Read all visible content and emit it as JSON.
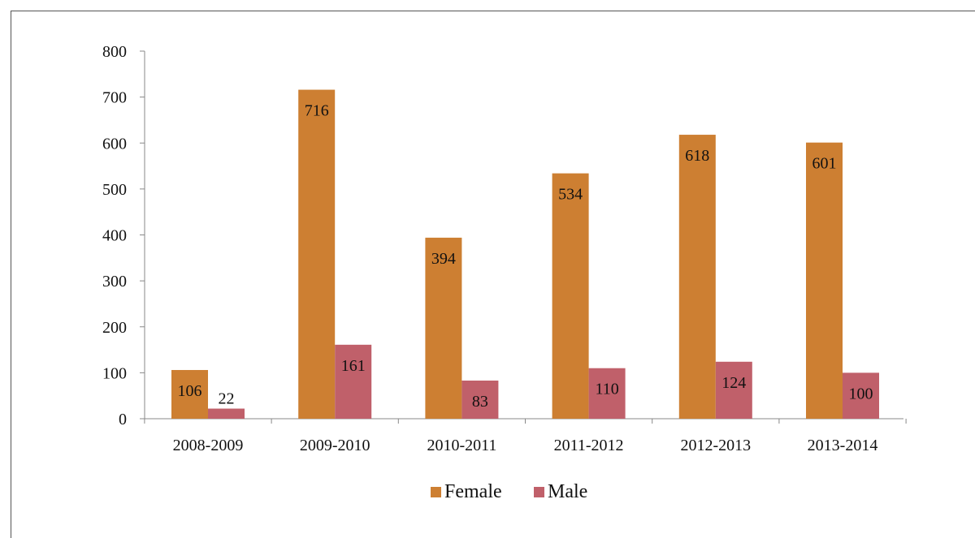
{
  "chart_data": {
    "type": "bar",
    "title": "",
    "xlabel": "",
    "ylabel": "",
    "ylim": [
      0,
      800
    ],
    "yticks": [
      0,
      100,
      200,
      300,
      400,
      500,
      600,
      700,
      800
    ],
    "categories": [
      "2008-2009",
      "2009-2010",
      "2010-2011",
      "2011-2012",
      "2012-2013",
      "2013-2014"
    ],
    "series": [
      {
        "name": "Female",
        "color": "#CD7F32",
        "values": [
          106,
          716,
          394,
          534,
          618,
          601
        ]
      },
      {
        "name": "Male",
        "color": "#C0606A",
        "values": [
          22,
          161,
          83,
          110,
          124,
          100
        ]
      }
    ],
    "data_labels": true,
    "grid": false,
    "legend_position": "bottom"
  }
}
